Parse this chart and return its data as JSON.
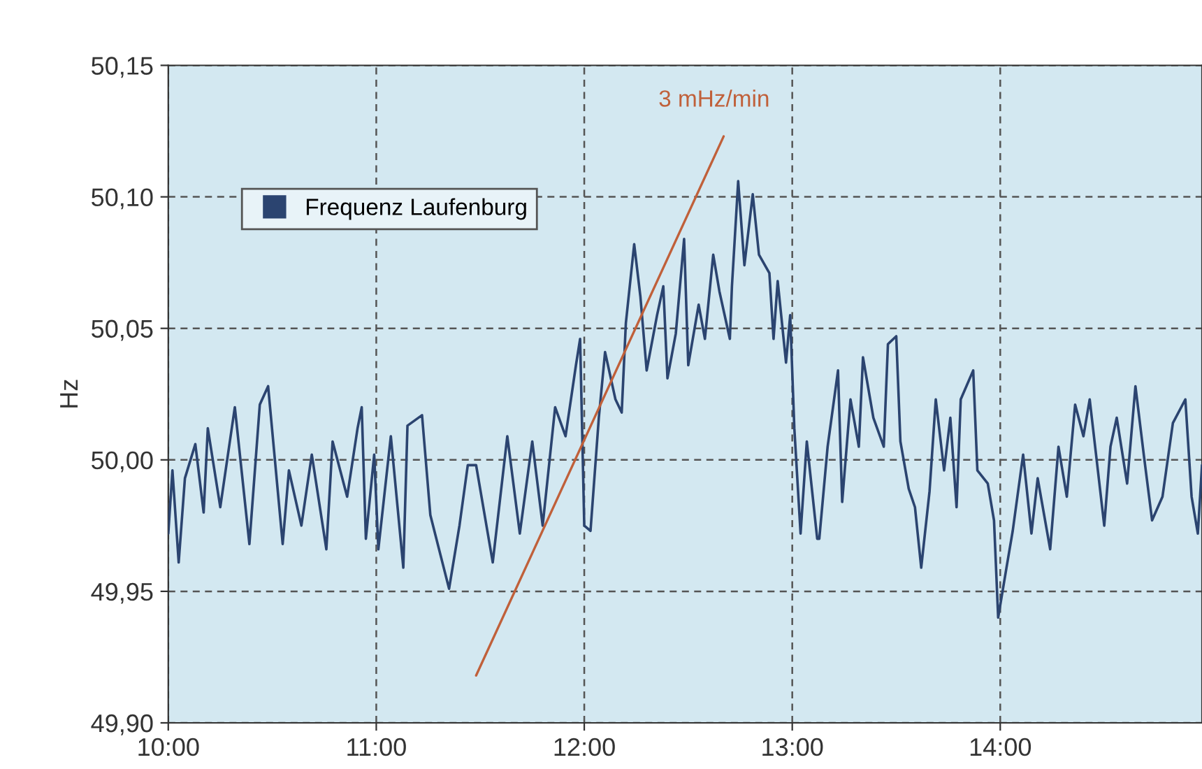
{
  "chart_data": {
    "type": "line",
    "ylabel": "Hz",
    "xlim": [
      10,
      14.97
    ],
    "xticks": [
      {
        "value": 10,
        "label": "10:00"
      },
      {
        "value": 11,
        "label": "11:00"
      },
      {
        "value": 12,
        "label": "12:00"
      },
      {
        "value": 13,
        "label": "13:00"
      },
      {
        "value": 14,
        "label": "14:00"
      }
    ],
    "ylim": [
      49.9,
      50.15
    ],
    "yticks": [
      {
        "value": 49.9,
        "label": "49,90"
      },
      {
        "value": 49.95,
        "label": "49,95"
      },
      {
        "value": 50.0,
        "label": "50,00"
      },
      {
        "value": 50.05,
        "label": "50,05"
      },
      {
        "value": 50.1,
        "label": "50,10"
      },
      {
        "value": 50.15,
        "label": "50,15"
      }
    ],
    "grid": true,
    "legend": "top left",
    "line_style": "solid",
    "marker": "none",
    "annotations": [
      "3 mHz/min"
    ],
    "series": [
      {
        "name": "Frequenz Laufenburg",
        "color": "#2b4470",
        "x": [
          10.0,
          10.02,
          10.05,
          10.08,
          10.13,
          10.17,
          10.19,
          10.25,
          10.32,
          10.39,
          10.44,
          10.48,
          10.55,
          10.58,
          10.64,
          10.69,
          10.76,
          10.79,
          10.86,
          10.91,
          10.93,
          10.95,
          10.99,
          11.01,
          11.07,
          11.13,
          11.15,
          11.22,
          11.26,
          11.35,
          11.4,
          11.44,
          11.48,
          11.56,
          11.63,
          11.69,
          11.75,
          11.8,
          11.86,
          11.91,
          11.96,
          11.98,
          12.0,
          12.03,
          12.07,
          12.1,
          12.15,
          12.18,
          12.2,
          12.24,
          12.27,
          12.3,
          12.35,
          12.38,
          12.4,
          12.44,
          12.48,
          12.5,
          12.55,
          12.58,
          12.62,
          12.65,
          12.7,
          12.71,
          12.74,
          12.77,
          12.81,
          12.84,
          12.89,
          12.91,
          12.93,
          12.97,
          12.99,
          13.01,
          13.04,
          13.07,
          13.12,
          13.13,
          13.17,
          13.22,
          13.24,
          13.28,
          13.32,
          13.34,
          13.39,
          13.44,
          13.46,
          13.5,
          13.52,
          13.56,
          13.59,
          13.62,
          13.66,
          13.69,
          13.73,
          13.76,
          13.79,
          13.81,
          13.87,
          13.89,
          13.94,
          13.97,
          13.99,
          14.03,
          14.06,
          14.11,
          14.15,
          14.18,
          14.24,
          14.28,
          14.32,
          14.36,
          14.4,
          14.43,
          14.5,
          14.53,
          14.56,
          14.61,
          14.65,
          14.69,
          14.73,
          14.78,
          14.83,
          14.89,
          14.92,
          14.95,
          14.97
        ],
        "values": [
          49.972,
          49.996,
          49.961,
          49.993,
          50.006,
          49.98,
          50.012,
          49.982,
          50.02,
          49.968,
          50.021,
          50.028,
          49.968,
          49.996,
          49.975,
          50.002,
          49.966,
          50.007,
          49.986,
          50.012,
          50.02,
          49.97,
          50.002,
          49.966,
          50.009,
          49.959,
          50.013,
          50.017,
          49.979,
          49.951,
          49.975,
          49.998,
          49.998,
          49.961,
          50.009,
          49.972,
          50.007,
          49.975,
          50.02,
          50.009,
          50.036,
          50.046,
          49.975,
          49.973,
          50.016,
          50.041,
          50.023,
          50.018,
          50.052,
          50.082,
          50.062,
          50.034,
          50.055,
          50.066,
          50.031,
          50.048,
          50.084,
          50.036,
          50.059,
          50.046,
          50.078,
          50.064,
          50.046,
          50.066,
          50.106,
          50.074,
          50.101,
          50.078,
          50.071,
          50.046,
          50.068,
          50.037,
          50.055,
          50.012,
          49.972,
          50.007,
          49.97,
          49.97,
          50.005,
          50.034,
          49.984,
          50.023,
          50.005,
          50.039,
          50.016,
          50.005,
          50.044,
          50.047,
          50.007,
          49.989,
          49.982,
          49.959,
          49.988,
          50.023,
          49.996,
          50.016,
          49.982,
          50.023,
          50.034,
          49.996,
          49.991,
          49.977,
          49.94,
          49.959,
          49.973,
          50.002,
          49.972,
          49.993,
          49.966,
          50.005,
          49.986,
          50.021,
          50.009,
          50.023,
          49.975,
          50.005,
          50.016,
          49.991,
          50.028,
          50.002,
          49.977,
          49.986,
          50.014,
          50.023,
          49.986,
          49.972,
          49.998
        ]
      },
      {
        "color": "#c0603a",
        "x": [
          11.48,
          12.67
        ],
        "values": [
          49.918,
          50.123
        ]
      }
    ]
  }
}
